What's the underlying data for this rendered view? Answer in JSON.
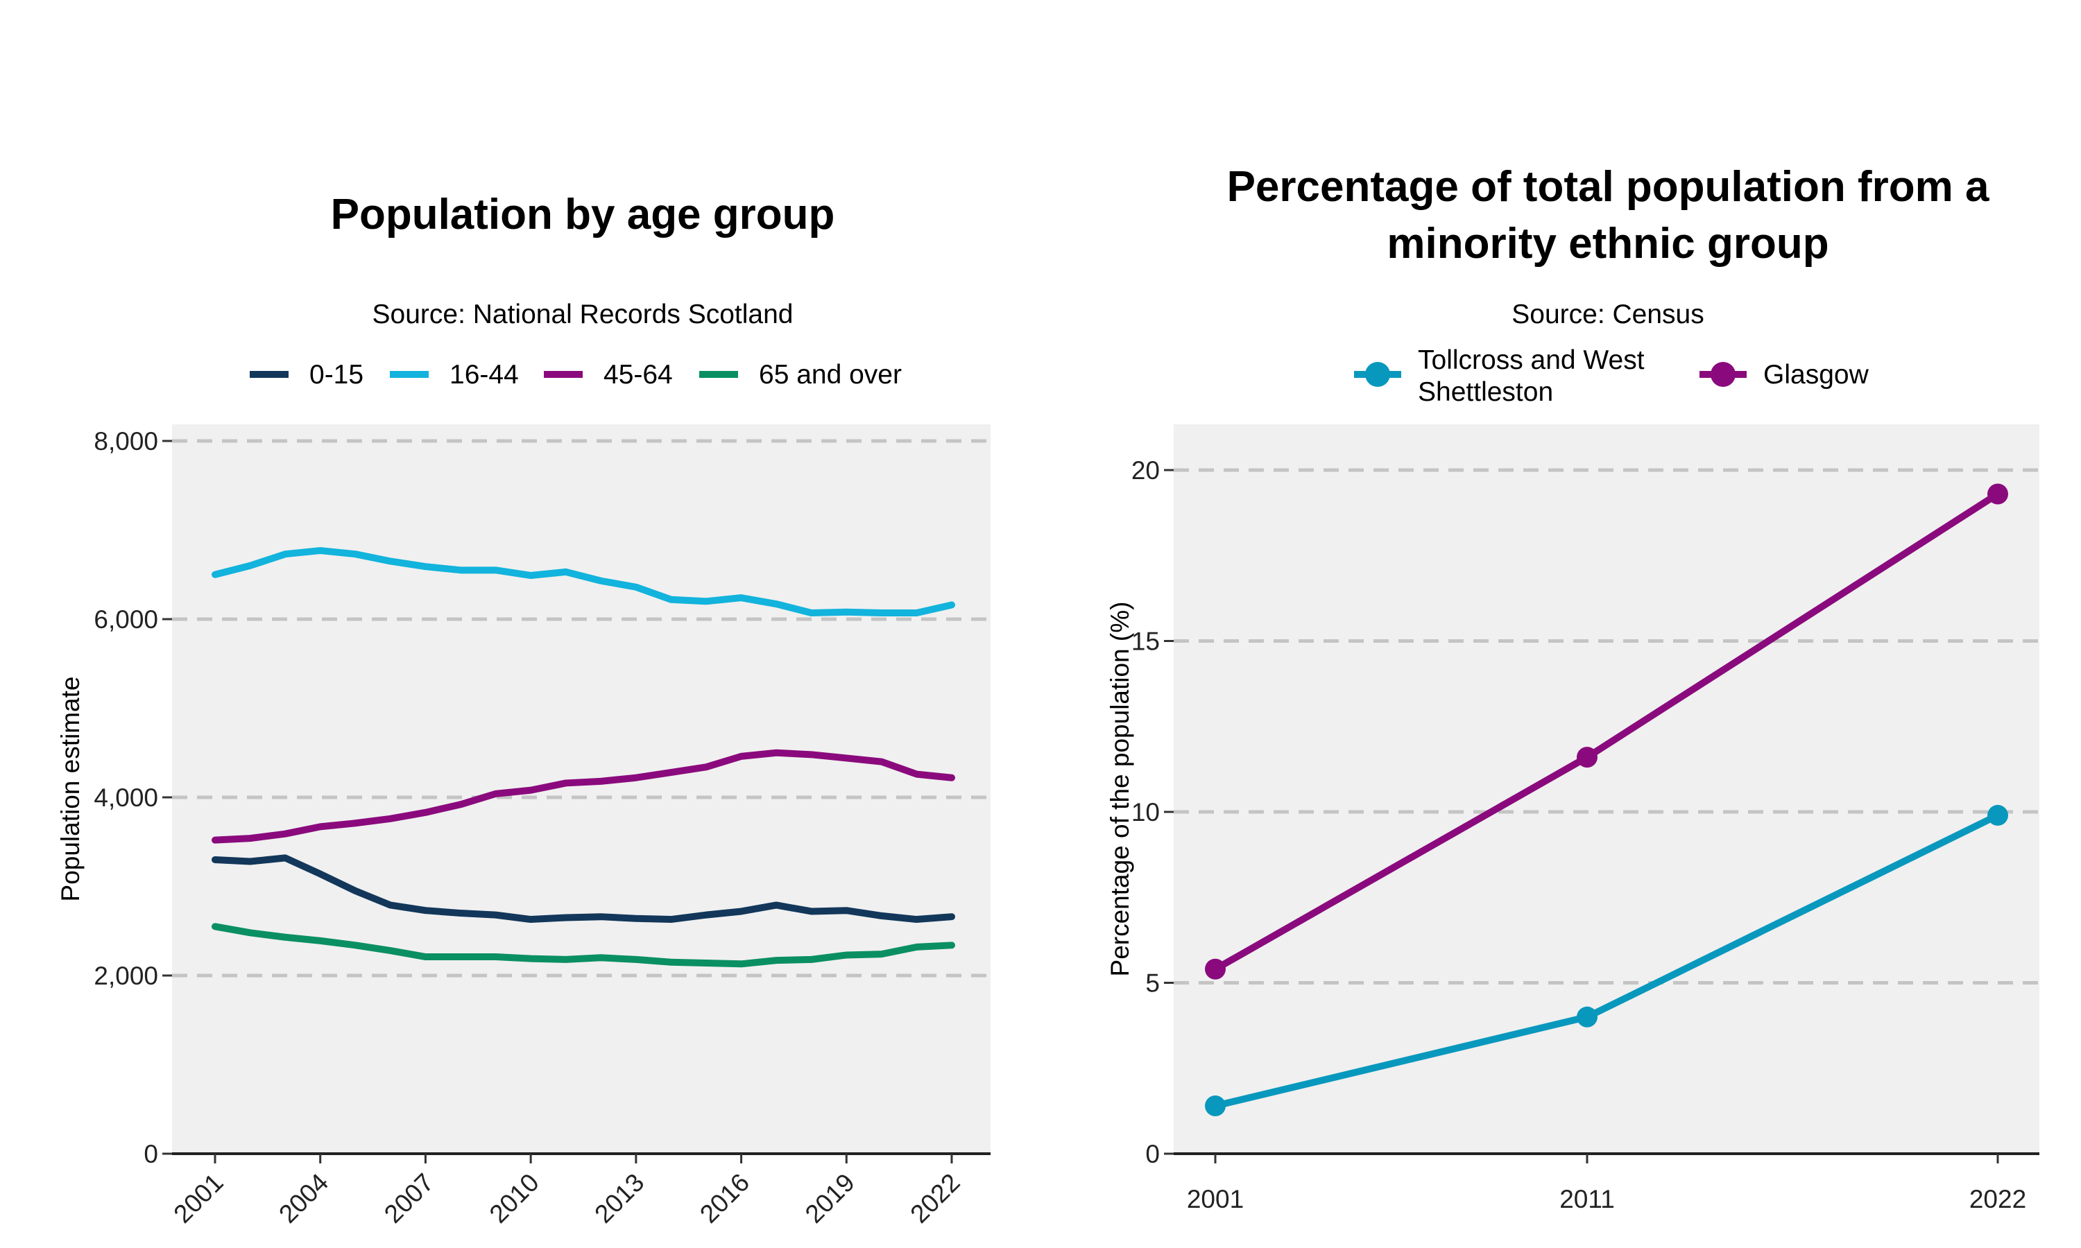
{
  "chart_data": [
    {
      "type": "line",
      "title": "Population by age group",
      "subtitle": "Source: National Records Scotland",
      "xlabel": "",
      "ylabel": "Population estimate",
      "xlim": [
        2001,
        2022
      ],
      "ylim": [
        0,
        8000
      ],
      "x_ticks": [
        2001,
        2004,
        2007,
        2010,
        2013,
        2016,
        2019,
        2022
      ],
      "x_tick_labels": [
        "2001",
        "2004",
        "2007",
        "2010",
        "2013",
        "2016",
        "2019",
        "2022"
      ],
      "y_ticks": [
        0,
        2000,
        4000,
        6000,
        8000
      ],
      "y_tick_labels": [
        "0",
        "2,000",
        "4,000",
        "6,000",
        "8,000"
      ],
      "grid": "horizontal dashed",
      "legend_position": "top",
      "x": [
        2001,
        2002,
        2003,
        2004,
        2005,
        2006,
        2007,
        2008,
        2009,
        2010,
        2011,
        2012,
        2013,
        2014,
        2015,
        2016,
        2017,
        2018,
        2019,
        2020,
        2021,
        2022
      ],
      "series": [
        {
          "name": "0-15",
          "color": "#12375a",
          "values": [
            3300,
            3280,
            3320,
            3140,
            2950,
            2790,
            2730,
            2700,
            2680,
            2630,
            2650,
            2660,
            2640,
            2630,
            2680,
            2720,
            2790,
            2720,
            2730,
            2670,
            2630,
            2660
          ]
        },
        {
          "name": "16-44",
          "color": "#12b3dc",
          "values": [
            6500,
            6600,
            6730,
            6770,
            6730,
            6650,
            6590,
            6550,
            6550,
            6490,
            6530,
            6430,
            6360,
            6220,
            6200,
            6240,
            6170,
            6070,
            6080,
            6070,
            6070,
            6160
          ]
        },
        {
          "name": "45-64",
          "color": "#8a0a7d",
          "values": [
            3520,
            3540,
            3590,
            3670,
            3710,
            3760,
            3830,
            3920,
            4040,
            4080,
            4160,
            4180,
            4220,
            4280,
            4340,
            4460,
            4500,
            4480,
            4440,
            4400,
            4260,
            4220
          ]
        },
        {
          "name": "65 and over",
          "color": "#0a8f63",
          "values": [
            2550,
            2480,
            2430,
            2390,
            2340,
            2280,
            2210,
            2210,
            2210,
            2190,
            2180,
            2200,
            2180,
            2150,
            2140,
            2130,
            2170,
            2180,
            2230,
            2240,
            2320,
            2340
          ]
        }
      ]
    },
    {
      "type": "line",
      "title_lines": [
        "Percentage of total population from a",
        "minority ethnic group"
      ],
      "subtitle": "Source: Census",
      "xlabel": "",
      "ylabel": "Percentage of the population (%)",
      "categories": [
        "2001",
        "2011",
        "2022"
      ],
      "ylim": [
        0,
        21.4
      ],
      "y_ticks": [
        0,
        5,
        10,
        15,
        20
      ],
      "y_tick_labels": [
        "0",
        "5",
        "10",
        "15",
        "20"
      ],
      "grid": "horizontal dashed",
      "legend_position": "top",
      "markers": true,
      "series": [
        {
          "name_lines": [
            "Tollcross and West",
            "Shettleston"
          ],
          "color": "#0998bd",
          "values": [
            1.4,
            4.0,
            9.9
          ]
        },
        {
          "name_lines": [
            "Glasgow"
          ],
          "color": "#8a0a7d",
          "values": [
            5.4,
            11.6,
            19.3
          ]
        }
      ]
    }
  ]
}
